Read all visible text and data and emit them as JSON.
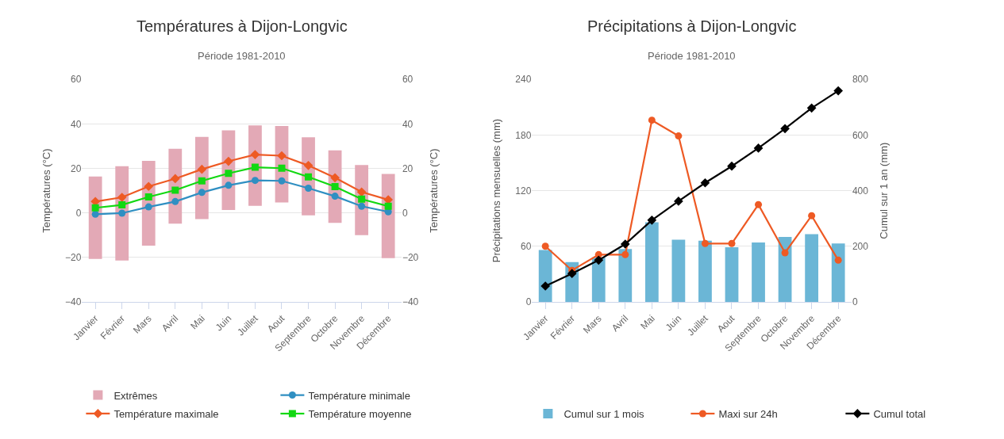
{
  "chart_data": [
    {
      "type": "bar",
      "title": "Températures à Dijon-Longvic",
      "subtitle": "Période 1981-2010",
      "ylabel": "Températures (°C)",
      "y2label": "Températures (°C)",
      "categories": [
        "Janvier",
        "Février",
        "Mars",
        "Avril",
        "Mai",
        "Juin",
        "Juillet",
        "Aout",
        "Septembre",
        "Octobre",
        "Novembre",
        "Décembre"
      ],
      "series": [
        {
          "name": "Extrêmes",
          "color": "#e3a9b6",
          "values": [
            37.1,
            42.4,
            38.1,
            33.6,
            37.0,
            35.8,
            36.1,
            34.4,
            35.1,
            32.6,
            31.5,
            37.8
          ],
          "base": [
            -20.7,
            -21.4,
            -14.7,
            -4.8,
            -2.8,
            1.3,
            3.2,
            4.7,
            -1.1,
            -4.5,
            -10.0,
            -20.3
          ]
        },
        {
          "name": "Température minimale",
          "type": "line",
          "color": "#2f8fc2",
          "marker": "circle",
          "values": [
            -0.6,
            -0.1,
            2.7,
            5.1,
            9.2,
            12.4,
            14.6,
            14.4,
            11.1,
            7.5,
            3.0,
            0.5
          ]
        },
        {
          "name": "Température maximale",
          "type": "line",
          "color": "#ee5a24",
          "marker": "diamond",
          "values": [
            5.1,
            7.0,
            11.9,
            15.4,
            19.6,
            23.2,
            26.2,
            25.7,
            21.3,
            15.8,
            9.4,
            5.9
          ]
        },
        {
          "name": "Température moyenne",
          "type": "line",
          "color": "#12d812",
          "marker": "square",
          "values": [
            2.3,
            3.6,
            7.2,
            10.2,
            14.4,
            17.8,
            20.5,
            20.1,
            16.2,
            11.8,
            6.2,
            3.0
          ]
        }
      ],
      "ylim": [
        -40,
        60
      ],
      "yticks": [
        -40,
        -20,
        0,
        20,
        40,
        60
      ],
      "y2lim": [
        -40,
        60
      ],
      "y2ticks": [
        -40,
        -20,
        0,
        20,
        40,
        60
      ],
      "grid": "y",
      "legend": "bottom"
    },
    {
      "type": "bar",
      "title": "Précipitations à Dijon-Longvic",
      "subtitle": "Période 1981-2010",
      "ylabel": "Précipitations mensuelles (mm)",
      "y2label": "Cumul sur 1 an (mm)",
      "categories": [
        "Janvier",
        "Février",
        "Mars",
        "Avril",
        "Mai",
        "Juin",
        "Juillet",
        "Aout",
        "Septembre",
        "Octobre",
        "Novembre",
        "Décembre"
      ],
      "series": [
        {
          "name": "Cumul sur 1 mois",
          "color": "#6bb6d6",
          "values": [
            56,
            43,
            48,
            57,
            86,
            67,
            66,
            59,
            64,
            70,
            73,
            63
          ]
        },
        {
          "name": "Maxi sur 24h",
          "type": "line",
          "color": "#ee5a24",
          "marker": "circle",
          "values": [
            60,
            34,
            51,
            51,
            196,
            179,
            63,
            63,
            105,
            53,
            93,
            45
          ]
        },
        {
          "name": "Cumul total",
          "type": "line",
          "color": "#000000",
          "marker": "diamond",
          "axis": "y2",
          "values": [
            57,
            102,
            150,
            208,
            294,
            362,
            428,
            488,
            553,
            623,
            697,
            759
          ]
        }
      ],
      "ylim": [
        0,
        240
      ],
      "yticks": [
        0,
        60,
        120,
        180,
        240
      ],
      "y2lim": [
        0,
        800
      ],
      "y2ticks": [
        0,
        200,
        400,
        600,
        800
      ],
      "grid": "y",
      "legend": "bottom"
    }
  ]
}
